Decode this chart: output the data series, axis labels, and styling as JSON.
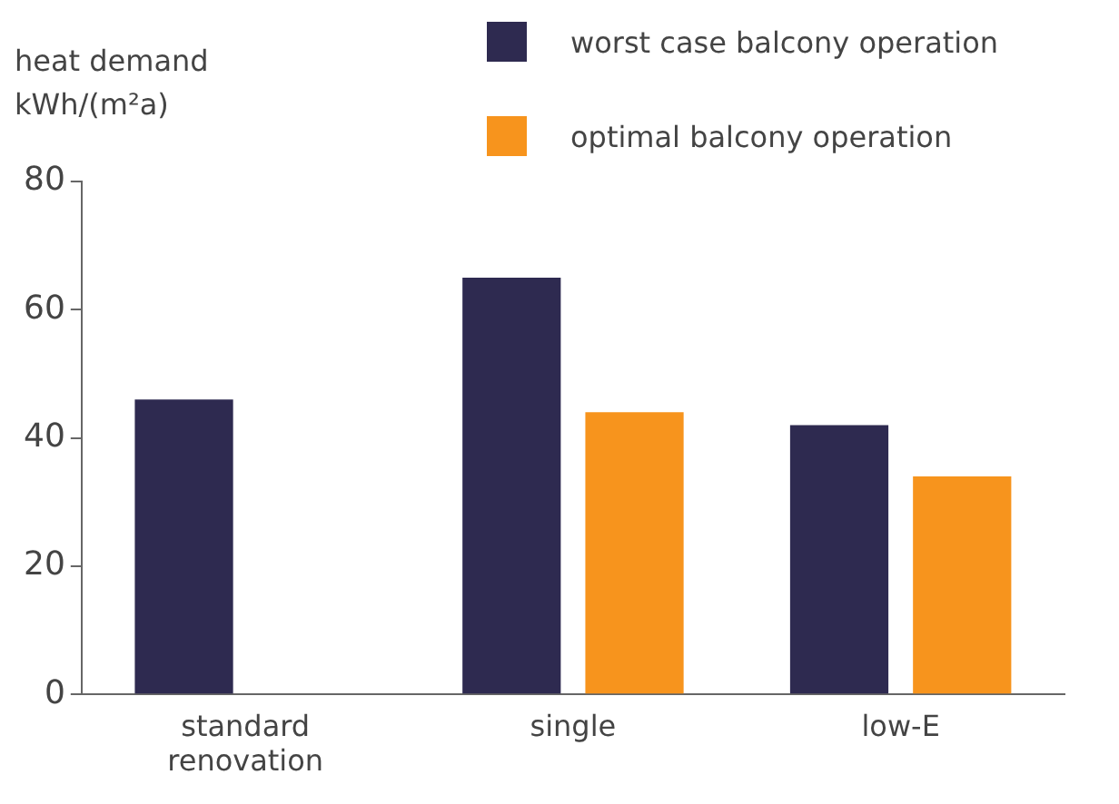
{
  "chart_data": {
    "type": "bar",
    "ylabel": "heat demand\nkWh/(m²a)",
    "categories": [
      "standard renovation",
      "single",
      "low-E"
    ],
    "series": [
      {
        "name": "worst case balcony operation",
        "color": "#2e2a50",
        "values": [
          46,
          65,
          42
        ]
      },
      {
        "name": "optimal balcony operation",
        "color": "#f7941d",
        "values": [
          null,
          44,
          34
        ]
      }
    ],
    "ylim": [
      0,
      80
    ],
    "yticks": [
      0,
      20,
      40,
      60,
      80
    ],
    "grid": false,
    "legend": "top right"
  }
}
